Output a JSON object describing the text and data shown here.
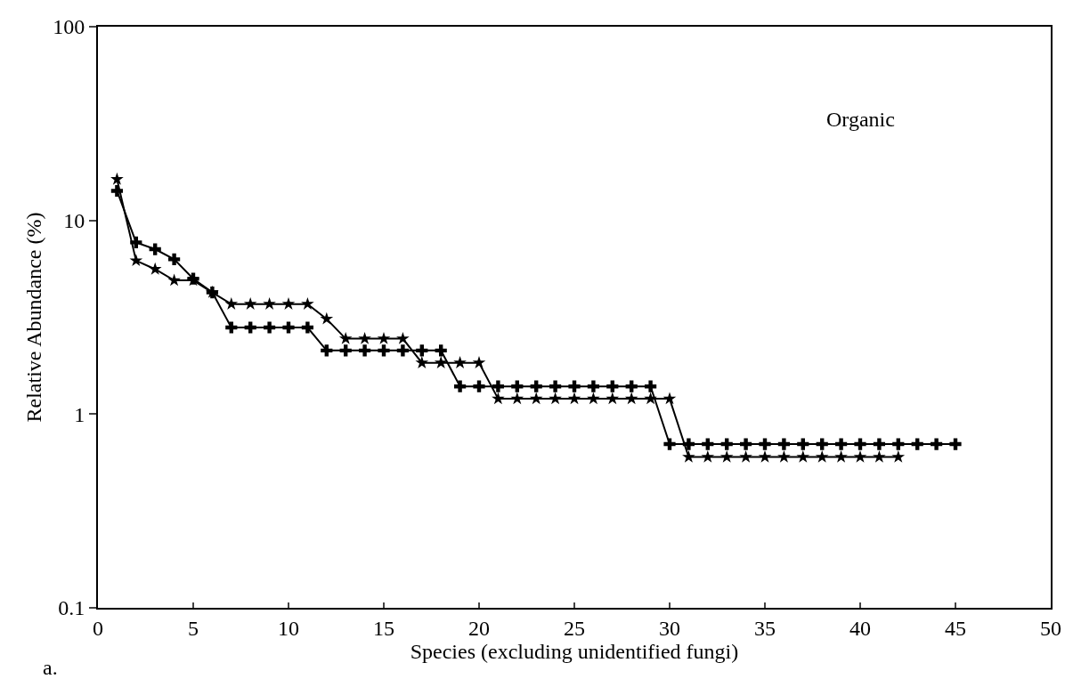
{
  "chart_data": {
    "type": "line",
    "xlabel": "Species (excluding unidentified fungi)",
    "ylabel": "Relative Abundance (%)",
    "annotations": [
      "Organic",
      "a."
    ],
    "log": "y",
    "xlim": [
      0,
      50
    ],
    "xticks": [
      0,
      5,
      10,
      15,
      20,
      25,
      30,
      35,
      40,
      45,
      50
    ],
    "ylim": [
      0.1,
      100
    ],
    "yticks": [
      0.1,
      1,
      10,
      100
    ],
    "series": [
      {
        "color": "#000000",
        "marker": "cross",
        "x": [
          1,
          2,
          3,
          4,
          5,
          6,
          7,
          8,
          9,
          10,
          11,
          12,
          13,
          14,
          15,
          16,
          17,
          18,
          19,
          20,
          21,
          22,
          23,
          24,
          25,
          26,
          27,
          28,
          29,
          30,
          31,
          32,
          33,
          34,
          35,
          36,
          37,
          38,
          39,
          40,
          41,
          42,
          43,
          44,
          45
        ],
        "values": [
          14.2,
          7.7,
          7.1,
          6.3,
          5.0,
          4.25,
          2.8,
          2.8,
          2.8,
          2.8,
          2.8,
          2.13,
          2.13,
          2.13,
          2.13,
          2.13,
          2.13,
          2.13,
          1.39,
          1.39,
          1.39,
          1.39,
          1.39,
          1.39,
          1.39,
          1.39,
          1.39,
          1.39,
          1.39,
          0.7,
          0.7,
          0.7,
          0.7,
          0.7,
          0.7,
          0.7,
          0.7,
          0.7,
          0.7,
          0.7,
          0.7,
          0.7,
          0.7,
          0.7,
          0.7
        ]
      },
      {
        "color": "#000000",
        "marker": "star",
        "x": [
          1,
          2,
          3,
          4,
          5,
          6,
          7,
          8,
          9,
          10,
          11,
          12,
          13,
          14,
          15,
          16,
          17,
          18,
          19,
          20,
          21,
          22,
          23,
          24,
          25,
          26,
          27,
          28,
          29,
          30,
          31,
          32,
          33,
          34,
          35,
          36,
          37,
          38,
          39,
          40,
          41,
          42
        ],
        "values": [
          16.3,
          6.2,
          5.6,
          4.9,
          4.9,
          4.25,
          3.7,
          3.7,
          3.7,
          3.7,
          3.7,
          3.1,
          2.45,
          2.45,
          2.45,
          2.45,
          1.84,
          1.84,
          1.84,
          1.84,
          1.2,
          1.2,
          1.2,
          1.2,
          1.2,
          1.2,
          1.2,
          1.2,
          1.2,
          1.2,
          0.6,
          0.6,
          0.6,
          0.6,
          0.6,
          0.6,
          0.6,
          0.6,
          0.6,
          0.6,
          0.6,
          0.6
        ]
      }
    ]
  }
}
